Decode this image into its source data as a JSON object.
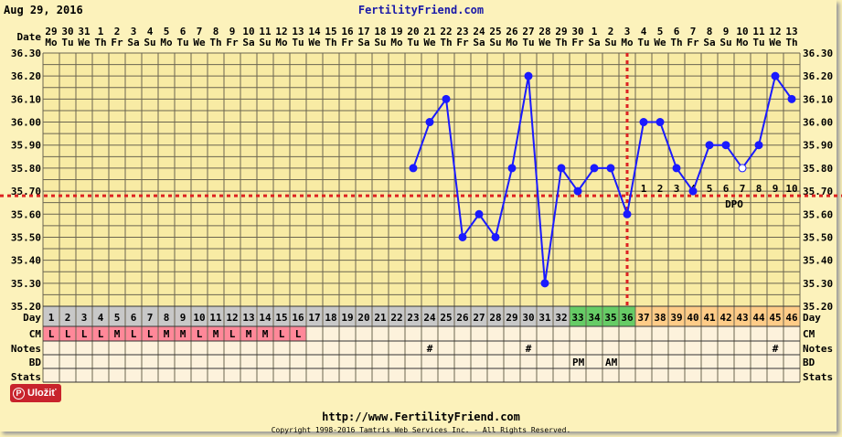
{
  "header": {
    "date": "Aug 29, 2016",
    "site": "FertilityFriend.com"
  },
  "footer": {
    "url": "http://www.FertilityFriend.com",
    "copyright": "Copyright 1998-2016 Tamtris Web Services Inc. - All Rights Reserved."
  },
  "pin_button": {
    "label": "Uložiť"
  },
  "row_labels": {
    "date": "Date",
    "day": "Day",
    "cm": "CM",
    "notes": "Notes",
    "bd": "BD",
    "stats": "Stats",
    "dpo": "DPO"
  },
  "colors": {
    "line": "#1a1aff",
    "coverline": "#dd2222",
    "day_default": "#c8c8c8",
    "day_fertile": "#66cc66",
    "day_luteal": "#ffcc88",
    "cm_bg": "#ff8899"
  },
  "chart_data": {
    "type": "line",
    "title": "FertilityFriend.com",
    "ylabel": "Temperature",
    "ylim": [
      35.2,
      36.3
    ],
    "yticks": [
      "36.30",
      "36.20",
      "36.10",
      "36.00",
      "35.90",
      "35.80",
      "35.70",
      "35.60",
      "35.50",
      "35.40",
      "35.30",
      "35.20"
    ],
    "dates": [
      "29",
      "30",
      "31",
      "1",
      "2",
      "3",
      "4",
      "5",
      "6",
      "7",
      "8",
      "9",
      "10",
      "11",
      "12",
      "13",
      "14",
      "15",
      "16",
      "17",
      "18",
      "19",
      "20",
      "21",
      "22",
      "23",
      "24",
      "25",
      "26",
      "27",
      "28",
      "29",
      "30",
      "1",
      "2",
      "3",
      "4",
      "5",
      "6",
      "7",
      "8",
      "9",
      "10",
      "11",
      "12",
      "13"
    ],
    "weekdays": [
      "Mo",
      "Tu",
      "We",
      "Th",
      "Fr",
      "Sa",
      "Su",
      "Mo",
      "Tu",
      "We",
      "Th",
      "Fr",
      "Sa",
      "Su",
      "Mo",
      "Tu",
      "We",
      "Th",
      "Fr",
      "Sa",
      "Su",
      "Mo",
      "Tu",
      "We",
      "Th",
      "Fr",
      "Sa",
      "Su",
      "Mo",
      "Tu",
      "We",
      "Th",
      "Fr",
      "Sa",
      "Su",
      "Mo",
      "Tu",
      "We",
      "Th",
      "Fr",
      "Sa",
      "Su",
      "Mo",
      "Tu",
      "We",
      "Th"
    ],
    "cycle_days": [
      1,
      2,
      3,
      4,
      5,
      6,
      7,
      8,
      9,
      10,
      11,
      12,
      13,
      14,
      15,
      16,
      17,
      18,
      19,
      20,
      21,
      22,
      23,
      24,
      25,
      26,
      27,
      28,
      29,
      30,
      31,
      32,
      33,
      34,
      35,
      36,
      37,
      38,
      39,
      40,
      41,
      42,
      43,
      44,
      45,
      46
    ],
    "fertile_days": [
      33,
      34,
      35,
      36
    ],
    "luteal_start": 37,
    "temperatures": [
      {
        "day": 23,
        "temp": 35.8
      },
      {
        "day": 24,
        "temp": 36.0
      },
      {
        "day": 25,
        "temp": 36.1
      },
      {
        "day": 26,
        "temp": 35.5
      },
      {
        "day": 27,
        "temp": 35.6
      },
      {
        "day": 28,
        "temp": 35.5
      },
      {
        "day": 29,
        "temp": 35.8
      },
      {
        "day": 30,
        "temp": 36.2
      },
      {
        "day": 31,
        "temp": 35.3
      },
      {
        "day": 32,
        "temp": 35.8
      },
      {
        "day": 33,
        "temp": 35.7
      },
      {
        "day": 34,
        "temp": 35.8
      },
      {
        "day": 35,
        "temp": 35.8
      },
      {
        "day": 36,
        "temp": 35.6
      },
      {
        "day": 37,
        "temp": 36.0
      },
      {
        "day": 38,
        "temp": 36.0
      },
      {
        "day": 39,
        "temp": 35.8
      },
      {
        "day": 40,
        "temp": 35.7
      },
      {
        "day": 41,
        "temp": 35.9
      },
      {
        "day": 42,
        "temp": 35.9
      },
      {
        "day": 43,
        "temp": 35.8,
        "open": true
      },
      {
        "day": 44,
        "temp": 35.9
      },
      {
        "day": 45,
        "temp": 36.2
      },
      {
        "day": 46,
        "temp": 36.1
      }
    ],
    "coverline": 35.68,
    "ovulation_day": 36,
    "dpo": [
      "1",
      "2",
      "3",
      "4",
      "5",
      "6",
      "7",
      "8",
      "9",
      "10"
    ],
    "cm": [
      "L",
      "L",
      "L",
      "L",
      "M",
      "L",
      "L",
      "M",
      "M",
      "L",
      "M",
      "L",
      "M",
      "M",
      "L",
      "L"
    ],
    "notes": [
      {
        "day": 24,
        "text": "#"
      },
      {
        "day": 30,
        "text": "#"
      },
      {
        "day": 45,
        "text": "#"
      }
    ],
    "bd": [
      {
        "day": 33,
        "text": "PM"
      },
      {
        "day": 35,
        "text": "AM"
      }
    ]
  }
}
